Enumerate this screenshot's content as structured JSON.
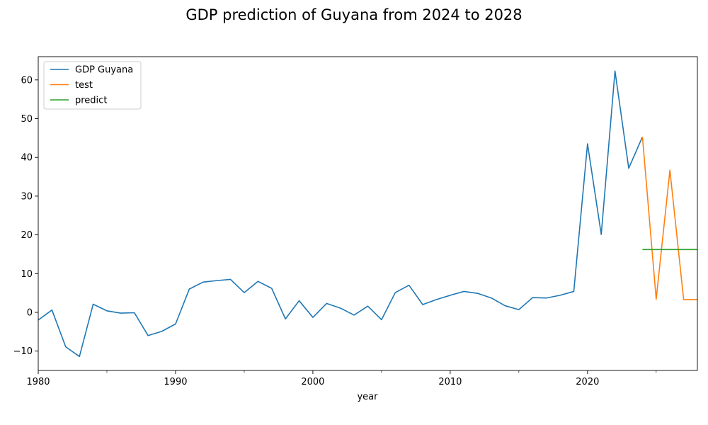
{
  "chart_data": {
    "type": "line",
    "title": "GDP prediction of Guyana from 2024 to 2028",
    "xlabel": "year",
    "ylabel": "",
    "xlim": [
      1980,
      2028
    ],
    "ylim": [
      -15,
      66
    ],
    "x_ticks": [
      "1980",
      "1990",
      "2000",
      "2010",
      "2020"
    ],
    "x_ticks_values": [
      1980,
      1990,
      2000,
      2010,
      2020
    ],
    "x_minor_ticks": [
      1985,
      1995,
      2005,
      2015,
      2025
    ],
    "y_ticks": [
      "−10",
      "0",
      "10",
      "20",
      "30",
      "40",
      "50",
      "60"
    ],
    "y_ticks_values": [
      -10,
      0,
      10,
      20,
      30,
      40,
      50,
      60
    ],
    "grid": false,
    "legend_position": "upper-left",
    "series": [
      {
        "name": "GDP Guyana",
        "color": "#1f77b4",
        "x": [
          1980,
          1981,
          1982,
          1983,
          1984,
          1985,
          1986,
          1987,
          1988,
          1989,
          1990,
          1991,
          1992,
          1993,
          1994,
          1995,
          1996,
          1997,
          1998,
          1999,
          2000,
          2001,
          2002,
          2003,
          2004,
          2005,
          2006,
          2007,
          2008,
          2009,
          2010,
          2011,
          2012,
          2013,
          2014,
          2015,
          2016,
          2017,
          2018,
          2019,
          2020,
          2021,
          2022,
          2023,
          2024
        ],
        "values": [
          -2.0,
          0.6,
          -8.9,
          -11.4,
          2.1,
          0.4,
          -0.2,
          -0.1,
          -6.0,
          -4.9,
          -3.0,
          6.0,
          7.8,
          8.2,
          8.5,
          5.1,
          8.0,
          6.2,
          -1.7,
          3.0,
          -1.3,
          2.3,
          1.1,
          -0.7,
          1.6,
          -1.9,
          5.1,
          7.0,
          2.0,
          3.3,
          4.4,
          5.4,
          4.9,
          3.7,
          1.7,
          0.7,
          3.8,
          3.7,
          4.4,
          5.4,
          43.5,
          20.1,
          62.3,
          37.2,
          45.3
        ]
      },
      {
        "name": "test",
        "color": "#ff7f0e",
        "x": [
          2024,
          2025,
          2026,
          2027,
          2028
        ],
        "values": [
          45.3,
          3.4,
          36.7,
          3.3,
          3.3
        ]
      },
      {
        "name": "predict",
        "color": "#2ca02c",
        "x": [
          2024,
          2025,
          2026,
          2027,
          2028
        ],
        "values": [
          16.2,
          16.2,
          16.2,
          16.2,
          16.2
        ]
      }
    ]
  }
}
